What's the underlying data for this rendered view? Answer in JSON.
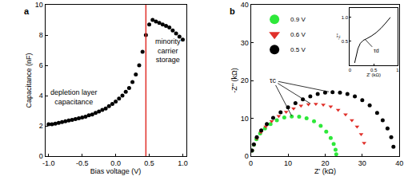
{
  "chart_data": [
    {
      "type": "scatter",
      "title": "a",
      "x_label": "Bias voltage (V)",
      "y_label": "Capacitance (nF)",
      "xlim": [
        -1.05,
        1.05
      ],
      "xticks": [
        {
          "value": -1,
          "label": "-1.0"
        },
        {
          "value": -0.5,
          "label": "-0.5"
        },
        {
          "value": 0,
          "label": "0.0"
        },
        {
          "value": 0.5,
          "label": "0.5"
        },
        {
          "value": 1,
          "label": "1.0"
        }
      ],
      "ylim": [
        0,
        10
      ],
      "yticks": [
        0,
        2,
        4,
        6,
        8,
        10
      ],
      "series": [
        {
          "color": "#000000",
          "marker": "circle",
          "x": [
            -1.0,
            -0.95,
            -0.9,
            -0.85,
            -0.8,
            -0.75,
            -0.7,
            -0.65,
            -0.6,
            -0.55,
            -0.5,
            -0.45,
            -0.4,
            -0.35,
            -0.3,
            -0.25,
            -0.2,
            -0.15,
            -0.1,
            -0.05,
            0,
            0.05,
            0.1,
            0.15,
            0.2,
            0.25,
            0.3,
            0.35,
            0.4,
            0.45,
            0.5,
            0.55,
            0.6,
            0.65,
            0.7,
            0.75,
            0.8,
            0.85,
            0.9,
            0.95,
            1.0
          ],
          "values": [
            2.1,
            2.1,
            2.15,
            2.2,
            2.25,
            2.3,
            2.35,
            2.4,
            2.45,
            2.5,
            2.55,
            2.6,
            2.7,
            2.75,
            2.85,
            2.95,
            3.05,
            3.15,
            3.3,
            3.45,
            3.6,
            3.8,
            4.0,
            4.25,
            4.5,
            4.9,
            5.4,
            6.0,
            6.9,
            8.0,
            8.7,
            9.0,
            8.9,
            8.8,
            8.7,
            8.6,
            8.5,
            8.3,
            8.1,
            7.9,
            7.7
          ]
        }
      ],
      "reference_line": {
        "x": 0.45,
        "color": "#e0302a"
      },
      "annotations": [
        {
          "text": "depletion layer\ncapacitance",
          "x": -0.62,
          "y": 3.9
        },
        {
          "text": "minority\ncarrier\nstorage",
          "x": 0.78,
          "y": 7.0
        }
      ]
    },
    {
      "type": "scatter",
      "title": "b",
      "x_label": "Z' (kΩ)",
      "y_label": "-Z'' (kΩ)",
      "xlim": [
        0,
        40
      ],
      "xticks": [
        0,
        10,
        20,
        30,
        40
      ],
      "ylim": [
        0,
        40
      ],
      "yticks": [
        0,
        10,
        20,
        30,
        40
      ],
      "legend": "top left",
      "series": [
        {
          "name": "0.9 V",
          "color": "#2ee83a",
          "marker": "circle",
          "x": [
            0.3,
            0.8,
            1.5,
            2.5,
            3.8,
            5.3,
            7,
            9,
            11,
            13,
            15,
            17,
            18.8,
            20.3,
            21.5,
            22.3,
            22.8,
            23.0
          ],
          "values": [
            1.5,
            3,
            4.5,
            6,
            7.3,
            8.5,
            9.5,
            10.2,
            10.5,
            10.4,
            10,
            9.2,
            8,
            6.5,
            4.8,
            3.2,
            1.7,
            0.5
          ]
        },
        {
          "name": "0.6 V",
          "color": "#e0302a",
          "marker": "triangle-down",
          "x": [
            0.3,
            0.8,
            1.6,
            2.7,
            4,
            5.6,
            7.5,
            9.5,
            11.5,
            13.5,
            15.5,
            17.5,
            19.5,
            21.5,
            23.5,
            25.5,
            27.2,
            28.6,
            29.7,
            30.5
          ],
          "values": [
            1.5,
            3,
            4.7,
            6.3,
            7.8,
            9.2,
            10.6,
            11.7,
            12.6,
            13.3,
            13.7,
            13.8,
            13.6,
            13.1,
            12.2,
            11,
            9.5,
            7.8,
            5.8,
            3.5
          ]
        },
        {
          "name": "0.5 V",
          "color": "#000000",
          "marker": "circle",
          "x": [
            0.3,
            0.8,
            1.6,
            2.8,
            4.3,
            6,
            8,
            10,
            12,
            14,
            16,
            18,
            20,
            22,
            24,
            26,
            28,
            30,
            32,
            34,
            35.5,
            36.8,
            37.8,
            38.4
          ],
          "values": [
            1.5,
            3.1,
            5,
            6.8,
            8.5,
            10.1,
            11.6,
            12.9,
            14,
            15,
            15.8,
            16.4,
            16.8,
            16.9,
            16.8,
            16.4,
            15.8,
            14.8,
            13.4,
            11.4,
            9.5,
            7.3,
            5,
            2.5
          ]
        }
      ],
      "annotations": [
        {
          "text": "τc",
          "x": 6,
          "y": 20,
          "arrows_to": [
            [
              11,
              10.6
            ],
            [
              16,
              13.9
            ],
            [
              21,
              17.0
            ]
          ]
        }
      ]
    },
    {
      "type": "line",
      "x_label": "Z' (kΩ)",
      "y_label": "-Z''",
      "xlim": [
        0,
        1
      ],
      "xticks": [
        0,
        0.5,
        1
      ],
      "ylim": [
        0,
        1.2
      ],
      "yticks": [
        0.5,
        {
          "value": 1,
          "label": "1.0"
        }
      ],
      "series": [
        {
          "color": "#000000",
          "x": [
            0.1,
            0.13,
            0.17,
            0.22,
            0.28,
            0.36,
            0.45,
            0.55,
            0.65,
            0.75,
            0.85
          ],
          "values": [
            0.05,
            0.2,
            0.35,
            0.46,
            0.52,
            0.56,
            0.61,
            0.68,
            0.77,
            0.88,
            1.0
          ]
        }
      ],
      "annotations": [
        {
          "text": "τd",
          "x": 0.55,
          "y": 0.3,
          "arrows_to": [
            [
              0.32,
              0.54
            ]
          ]
        }
      ]
    }
  ]
}
